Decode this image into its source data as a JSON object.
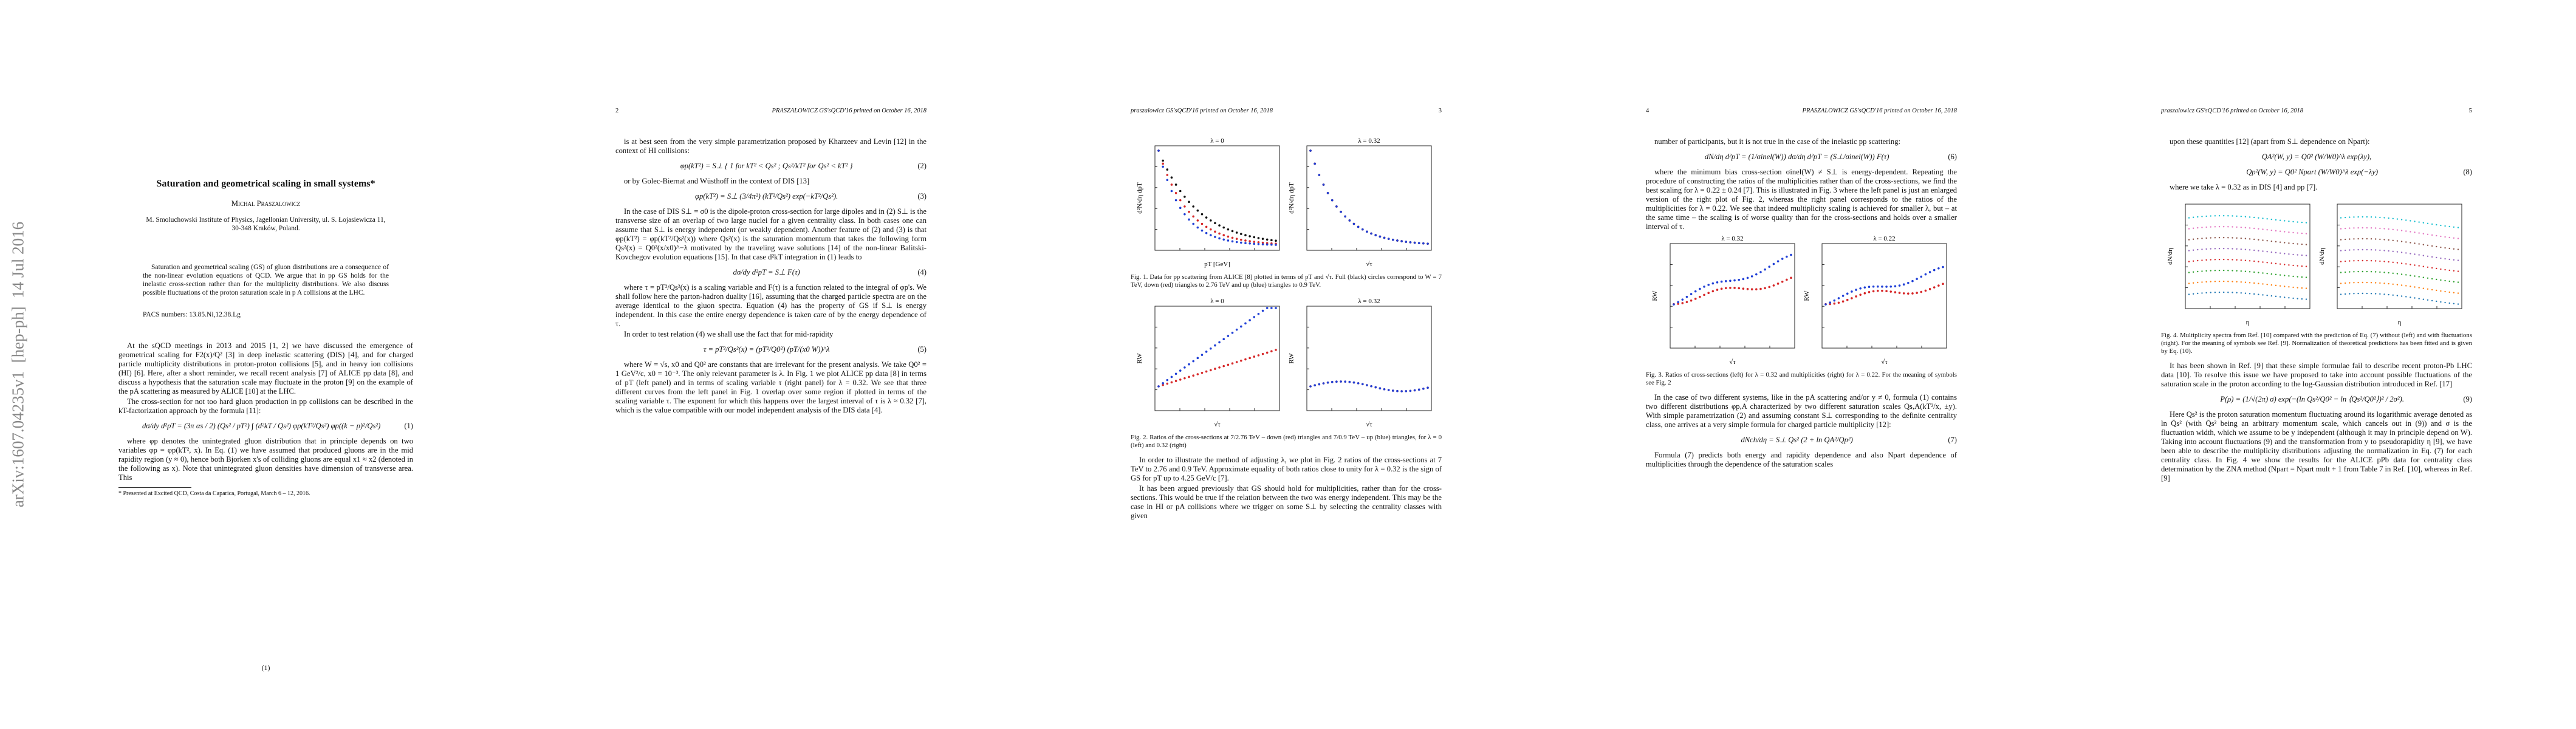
{
  "stamp": "arXiv:1607.04235v1  [hep-ph]  14 Jul 2016",
  "pages": [
    {
      "title": "Saturation and geometrical scaling in small systems*",
      "author": "Michal Praszalowicz",
      "affiliation": "M. Smoluchowski Institute of Physics, Jagellonian University, ul. S. Łojasiewicza 11, 30-348 Kraków, Poland.",
      "abstract": "Saturation and geometrical scaling (GS) of gluon distributions are a consequence of the non-linear evolution equations of QCD. We argue that in pp GS holds for the inelastic cross-section rather than for the multiplicity distributions. We also discuss possible fluctuations of the proton saturation scale in p A collisions at the LHC.",
      "pacs": "PACS numbers: 13.85.Ni,12.38.Lg",
      "blocks": [
        "At the sQCD meetings in 2013 and 2015 [1, 2] we have discussed the emergence of geometrical scaling for F2(x)/Q² [3] in deep inelastic scattering (DIS) [4], and for charged particle multiplicity distributions in proton-proton collisions [5], and in heavy ion collisions (HI) [6]. Here, after a short reminder, we recall recent analysis [7] of ALICE pp data [8], and discuss a hypothesis that the saturation scale may fluctuate in the proton [9] on the example of the pA scattering as measured by ALICE [10] at the LHC.",
        "The cross-section for not too hard gluon production in pp collisions can be described in the kT-factorization approach by the formula [11]:",
        {
          "equation": "dσ/dy d²pT = (3π αs / 2) (Qs² / pT²) ∫ (d²kT / Qs²) φp(kT²/Qs²) φp((k − p)²/Qs²)",
          "number": "(1)"
        },
        "where φp denotes the unintegrated gluon distribution that in principle depends on two variables φp = φp(kT², x). In Eq. (1) we have assumed that produced gluons are in the mid rapidity region (y ≈ 0), hence both Bjorken x's of colliding gluons are equal x1 ≈ x2 (denoted in the following as x). Note that unintegrated gluon densities have dimension of transverse area. This"
      ],
      "footnote": "* Presented at Excited QCD, Costa da Caparica, Portugal, March 6 – 12, 2016.",
      "number": "(1)"
    },
    {
      "number": "2",
      "running": "PRASZALOWICZ GS'sQCD'16   printed on October 16, 2018",
      "blocks": [
        "is at best seen from the very simple parametrization proposed by Kharzeev and Levin [12] in the context of HI collisions:",
        {
          "equation": "φp(kT²) = S⊥ { 1 for kT² < Qs² ;  Qs²/kT² for Qs² < kT² }",
          "number": "(2)"
        },
        "or by Golec-Biernat and Wüsthoff in the context of DIS [13]",
        {
          "equation": "φp(kT²) = S⊥ (3/4π²) (kT²/Qs²) exp(−kT²/Qs²).",
          "number": "(3)"
        },
        "In the case of DIS S⊥ = σ0 is the dipole-proton cross-section for large dipoles and in (2) S⊥ is the transverse size of an overlap of two large nuclei for a given centrality class. In both cases one can assume that S⊥ is energy independent (or weakly dependent). Another feature of (2) and (3) is that φp(kT²) = φp(kT²/Qs²(x)) where Qs²(x) is the saturation momentum that takes the following form Qs²(x) = Q0²(x/x0)^−λ motivated by the traveling wave solutions [14] of the non-linear Balitski-Kovchegov evolution equations [15]. In that case d²kT integration in (1) leads to",
        {
          "equation": "dσ/dy d²pT = S⊥ F(τ)",
          "number": "(4)"
        },
        "where τ = pT²/Qs²(x) is a scaling variable and F(τ) is a function related to the integral of φp's. We shall follow here the parton-hadron duality [16], assuming that the charged particle spectra are on the average identical to the gluon spectra. Equation (4) has the property of GS if S⊥ is energy independent. In this case the entire energy dependence is taken care of by the energy dependence of τ.",
        "In order to test relation (4) we shall use the fact that for mid-rapidity",
        {
          "equation": "τ = pT²/Qs²(x) = (pT²/Q0²) (pT/(x0 W))^λ",
          "number": "(5)"
        },
        "where W = √s, x0 and Q0² are constants that are irrelevant for the present analysis. We take Q0² = 1 GeV²/c, x0 = 10⁻³. The only relevant parameter is λ. In Fig. 1 we plot ALICE pp data [8] in terms of pT (left panel) and in terms of scaling variable τ (right panel) for λ = 0.32. We see that three different curves from the left panel in Fig. 1 overlap over some region if plotted in terms of the scaling variable τ. The exponent for which this happens over the largest interval of τ is λ ≈ 0.32 [7], which is the value compatible with our model independent analysis of the DIS data [4]."
      ]
    },
    {
      "number": "3",
      "running": "praszalowicz GS'sQCD'16   printed on October 16, 2018",
      "blocks": [
        {
          "panels": [
            {
              "title": "λ = 0",
              "xlabel": "pT [GeV]",
              "ylabel": "d²N/dη dpT"
            },
            {
              "title": "λ = 0.32",
              "xlabel": "√τ",
              "ylabel": "d²N/dη dpT"
            }
          ],
          "caption": "Fig. 1. Data for pp scattering from ALICE [8] plotted in terms of pT and √τ. Full (black) circles correspond to W = 7 TeV, down (red) triangles to 2.76 TeV and up (blue) triangles to 0.9 TeV."
        },
        {
          "panels": [
            {
              "title": "λ = 0",
              "xlabel": "√τ",
              "ylabel": "RW"
            },
            {
              "title": "λ = 0.32",
              "xlabel": "√τ",
              "ylabel": "RW"
            }
          ],
          "caption": "Fig. 2. Ratios of the cross-sections at 7/2.76 TeV – down (red) triangles and 7/0.9 TeV – up (blue) triangles, for λ = 0 (left) and 0.32 (right)"
        },
        "In order to illustrate the method of adjusting λ, we plot in Fig. 2 ratios of the cross-sections at 7 TeV to 2.76 and 0.9 TeV. Approximate equality of both ratios close to unity for λ = 0.32 is the sign of GS for pT up to 4.25 GeV/c [7].",
        "It has been argued previously that GS should hold for multiplicities, rather than for the cross-sections. This would be true if the relation between the two was energy independent. This may be the case in HI or pA collisions where we trigger on some S⊥ by selecting the centrality classes with given"
      ]
    },
    {
      "number": "4",
      "running": "PRASZALOWICZ GS'sQCD'16   printed on October 16, 2018",
      "blocks": [
        "number of participants, but it is not true in the case of the inelastic pp scattering:",
        {
          "equation": "dN/dη d²pT = (1/σinel(W)) dσ/dη d²pT = (S⊥/σinel(W)) F(τ)",
          "number": "(6)"
        },
        "where the minimum bias cross-section σinel(W) ≠ S⊥ is energy-dependent. Repeating the procedure of constructing the ratios of the multiplicities rather than of the cross-sections, we find the best scaling for λ = 0.22 ± 0.24 [7]. This is illustrated in Fig. 3 where the left panel is just an enlarged version of the right plot of Fig. 2, whereas the right panel corresponds to the ratios of the multiplicities for λ = 0.22. We see that indeed multiplicity scaling is achieved for smaller λ, but – at the same time – the scaling is of worse quality than for the cross-sections and holds over a smaller interval of τ.",
        {
          "panels": [
            {
              "title": "λ = 0.32",
              "xlabel": "√τ",
              "ylabel": "RW"
            },
            {
              "title": "λ = 0.22",
              "xlabel": "√τ",
              "ylabel": "RW"
            }
          ],
          "caption": "Fig. 3. Ratios of cross-sections (left) for λ = 0.32 and multiplicities (right) for λ = 0.22. For the meaning of symbols see Fig. 2"
        },
        "In the case of two different systems, like in the pA scattering and/or y ≠ 0, formula (1) contains two different distributions φp,A characterized by two different saturation scales Qs,A(kT²/x, ±y). With simple parametrization (2) and assuming constant S⊥ corresponding to the definite centrality class, one arrives at a very simple formula for charged particle multiplicity [12]:",
        {
          "equation": "dNch/dη = S⊥ Qs² (2 + ln QA²/Qp²)",
          "number": "(7)"
        },
        "Formula (7) predicts both energy and rapidity dependence and also Npart dependence of multiplicities through the dependence of the saturation scales"
      ]
    },
    {
      "number": "5",
      "running": "praszalowicz GS'sQCD'16   printed on October 16, 2018",
      "blocks": [
        "upon these quantities [12] (apart from S⊥ dependence on Npart):",
        {
          "equation": "QA²(W, y) = Q0² (W/W0)^λ exp(λy),"
        },
        {
          "equation": "Qp²(W, y) = Q0² Npart (W/W0)^λ exp(−λy)",
          "number": "(8)"
        },
        "where we take λ = 0.32 as in DIS [4] and pp [7].",
        {
          "panels": [
            {
              "title": "",
              "xlabel": "η",
              "ylabel": "dN/dη"
            },
            {
              "title": "",
              "xlabel": "η",
              "ylabel": "dN/dη"
            }
          ],
          "caption": "Fig. 4. Multiplicity spectra from Ref. [10] compared with the prediction of Eq. (7) without (left) and with fluctuations (right). For the meaning of symbols see Ref. [9]. Normalization of theoretical predictions has been fitted and is given by Eq. (10)."
        },
        "It has been shown in Ref. [9] that these simple formulae fail to describe recent proton-Pb LHC data [10]. To resolve this issue we have proposed to take into account possible fluctuations of the saturation scale in the proton according to the log-Gaussian distribution introduced in Ref. [17]",
        {
          "equation": "P(ρ) = (1/√(2π) σ) exp(−(ln Qs²/Q0² − ln ⟨Qs²/Q0²⟩)² / 2σ²).",
          "number": "(9)"
        },
        "Here Qs² is the proton saturation momentum fluctuating around its logarithmic average denoted as ln Q̄s² (with Q̄s² being an arbitrary momentum scale, which cancels out in (9)) and σ is the fluctuation width, which we assume to be y independent (although it may in principle depend on W). Taking into account fluctuations (9) and the transformation from y to pseudorapidity η [9], we have been able to describe the multiplicity distributions adjusting the normalization in Eq. (7) for each centrality class. In Fig. 4 we show the results for the ALICE pPb data for centrality class determination by the ZNA method (Npart = Npart mult + 1 from Table 7 in Ref. [10], whereas in Ref. [9]"
      ]
    }
  ]
}
